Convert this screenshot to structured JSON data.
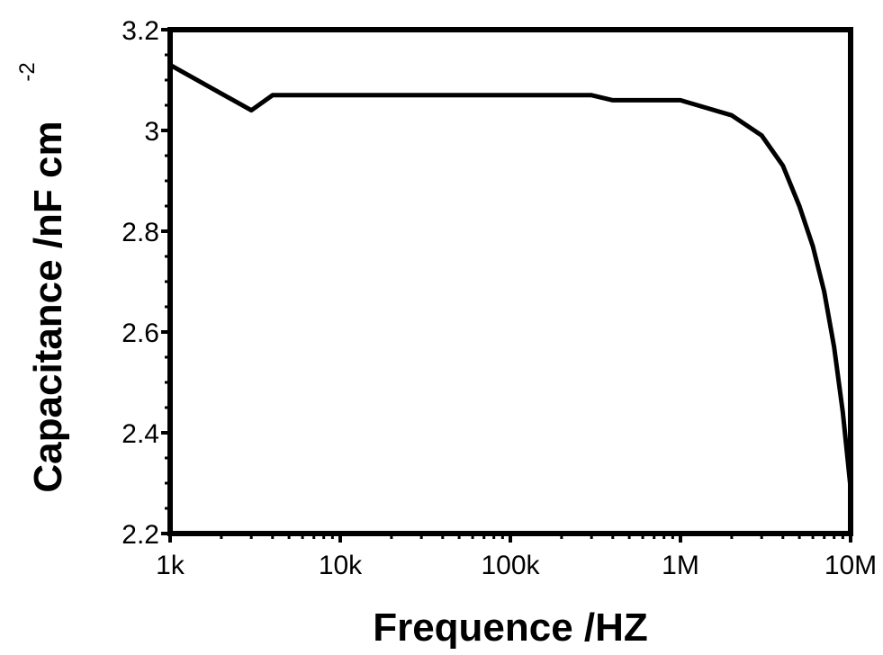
{
  "chart_data": {
    "type": "line",
    "xlabel": "Frequence /HZ",
    "ylabel": "Capacitance /nF cm",
    "ylabel_superscript": "-2",
    "x_scale": "log",
    "xlim": [
      1000,
      10000000
    ],
    "ylim": [
      2.2,
      3.2
    ],
    "x_ticks": [
      {
        "value": 1000,
        "label": "1k"
      },
      {
        "value": 10000,
        "label": "10k"
      },
      {
        "value": 100000,
        "label": "100k"
      },
      {
        "value": 1000000,
        "label": "1M"
      },
      {
        "value": 10000000,
        "label": "10M"
      }
    ],
    "y_ticks": [
      {
        "value": 2.2,
        "label": "2.2"
      },
      {
        "value": 2.4,
        "label": "2.4"
      },
      {
        "value": 2.6,
        "label": "2.6"
      },
      {
        "value": 2.8,
        "label": "2.8"
      },
      {
        "value": 3.0,
        "label": "3"
      },
      {
        "value": 3.2,
        "label": "3.2"
      }
    ],
    "grid": false,
    "legend": "none",
    "line_color": "#000000",
    "series": [
      {
        "x": [
          1000,
          3000,
          4000,
          10000,
          100000,
          300000,
          400000,
          1000000,
          2000000,
          3000000,
          4000000,
          5000000,
          6000000,
          7000000,
          8000000,
          9000000,
          10000000
        ],
        "y": [
          3.13,
          3.04,
          3.07,
          3.07,
          3.07,
          3.07,
          3.06,
          3.06,
          3.03,
          2.99,
          2.93,
          2.85,
          2.77,
          2.68,
          2.57,
          2.44,
          2.29
        ]
      }
    ]
  }
}
